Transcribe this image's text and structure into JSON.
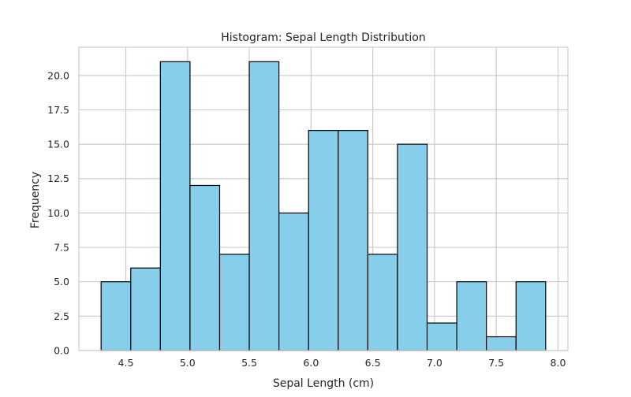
{
  "chart_data": {
    "type": "bar",
    "title": "Histogram: Sepal Length Distribution",
    "xlabel": "Sepal Length (cm)",
    "ylabel": "Frequency",
    "xlim": [
      4.12,
      8.08
    ],
    "ylim": [
      0,
      22.05
    ],
    "xticks": [
      4.5,
      5.0,
      5.5,
      6.0,
      6.5,
      7.0,
      7.5,
      8.0
    ],
    "xtick_labels": [
      "4.5",
      "5.0",
      "5.5",
      "6.0",
      "6.5",
      "7.0",
      "7.5",
      "8.0"
    ],
    "yticks": [
      0,
      2.5,
      5,
      7.5,
      10,
      12.5,
      15,
      17.5,
      20
    ],
    "ytick_labels": [
      "0.0",
      "2.5",
      "5.0",
      "7.5",
      "10.0",
      "12.5",
      "15.0",
      "17.5",
      "20.0"
    ],
    "bin_edges": [
      4.3,
      4.54,
      4.78,
      5.02,
      5.26,
      5.5,
      5.74,
      5.98,
      6.22,
      6.46,
      6.7,
      6.94,
      7.18,
      7.42,
      7.66,
      7.9
    ],
    "values": [
      5,
      6,
      21,
      12,
      7,
      21,
      10,
      16,
      16,
      7,
      15,
      2,
      5,
      1,
      5
    ],
    "grid": true,
    "colors": {
      "bar_fill": "#87ceeb",
      "bar_edge": "#000000",
      "grid": "#cccccc",
      "axes": "#cccccc"
    }
  }
}
